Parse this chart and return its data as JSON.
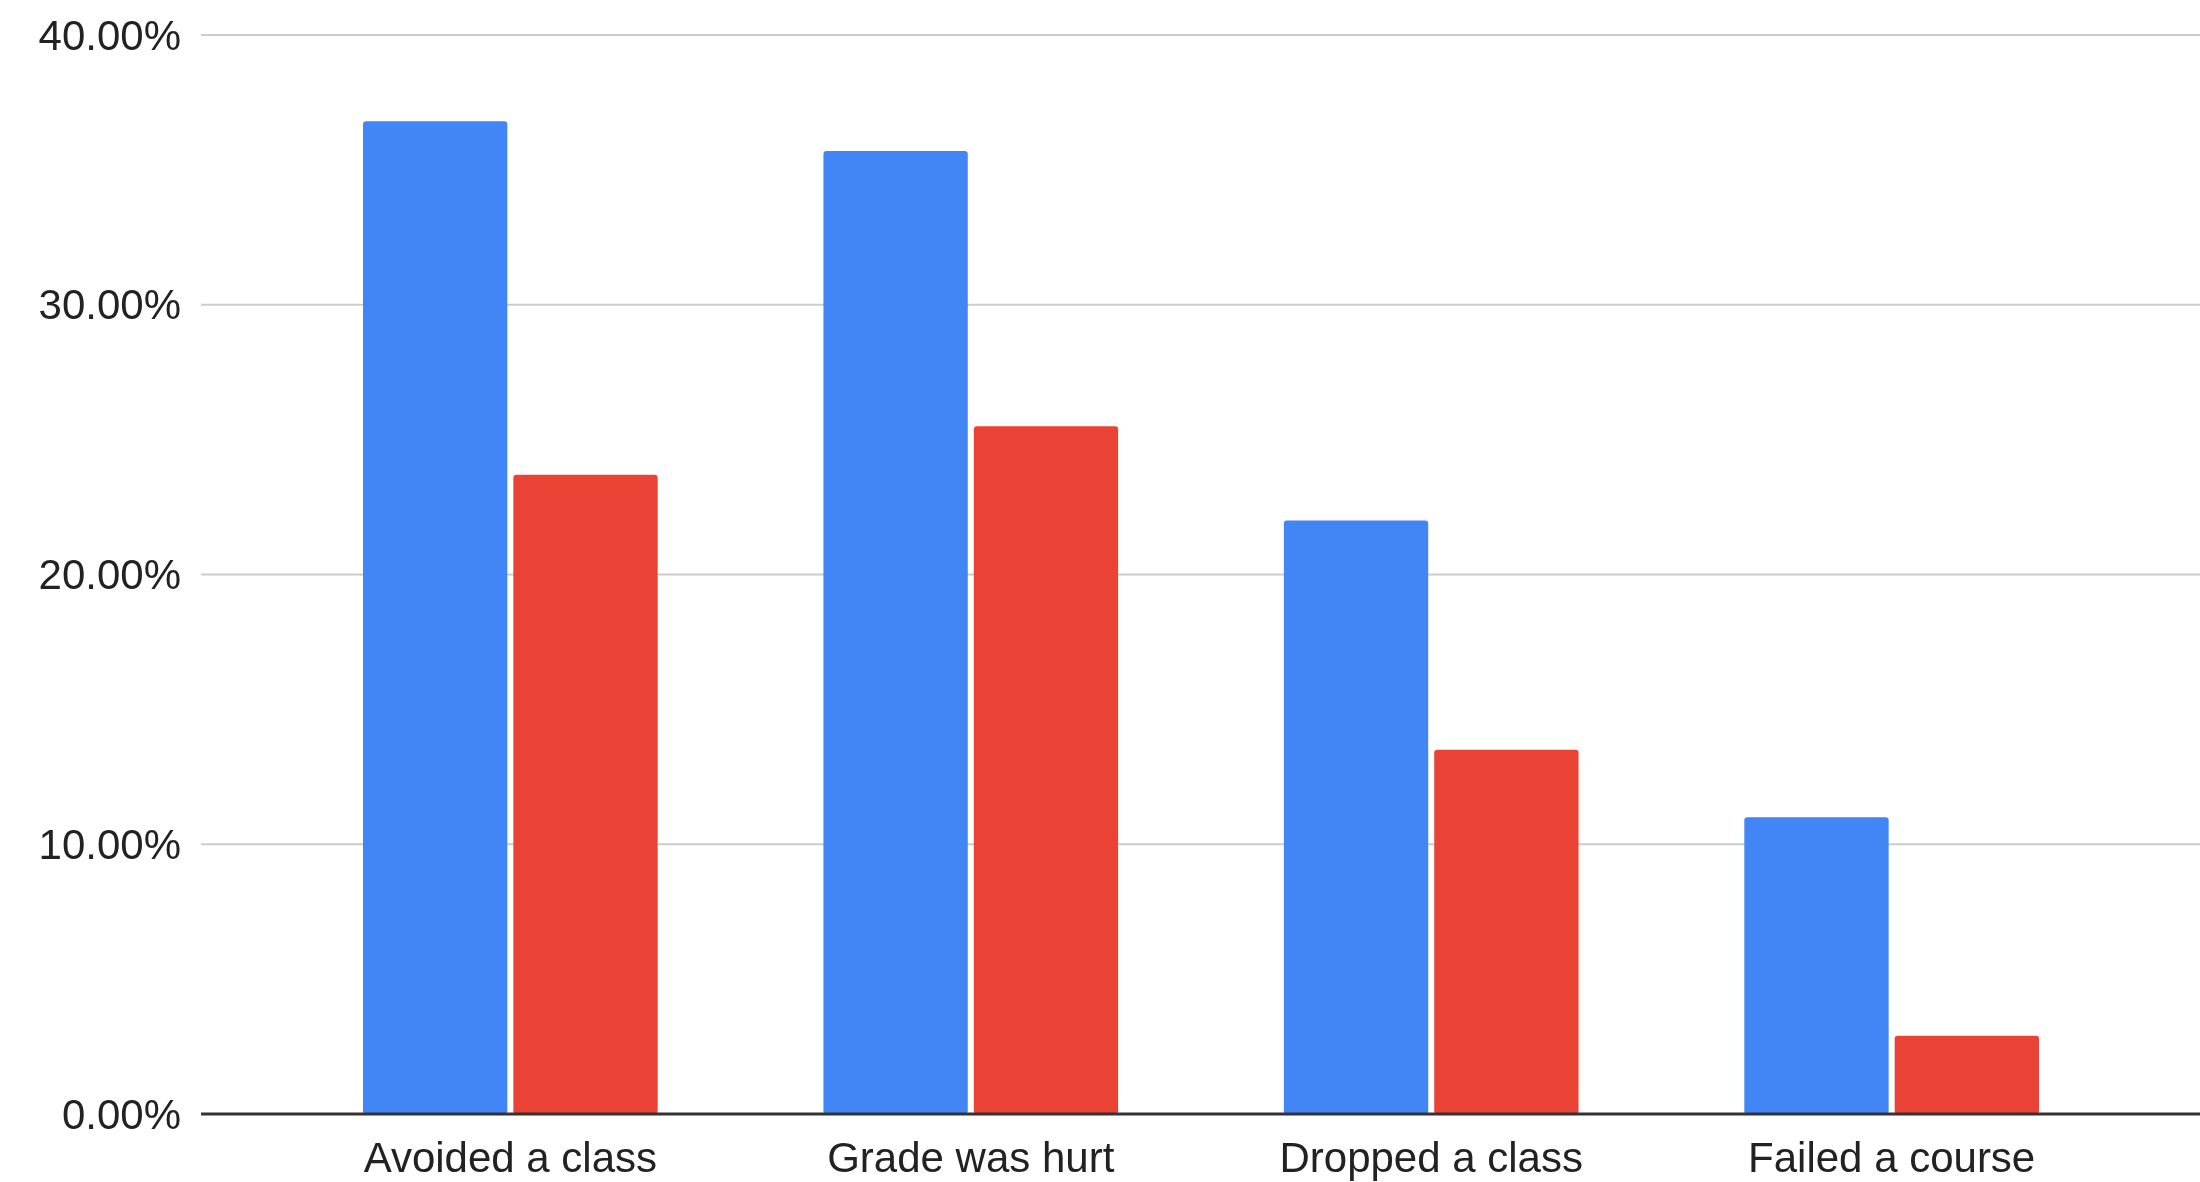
{
  "chart_data": {
    "type": "bar",
    "categories": [
      "Avoided a class",
      "Grade was hurt",
      "Dropped a class",
      "Failed a course"
    ],
    "series": [
      {
        "color": "#4285f4",
        "values": [
          36.8,
          35.7,
          22.0,
          11.0
        ]
      },
      {
        "color": "#ea4335",
        "values": [
          23.7,
          25.5,
          13.5,
          2.9
        ]
      }
    ],
    "ylim": [
      0,
      40
    ],
    "yticks": [
      {
        "value": 0,
        "label": "0.00%"
      },
      {
        "value": 10,
        "label": "10.00%"
      },
      {
        "value": 20,
        "label": "20.00%"
      },
      {
        "value": 30,
        "label": "30.00%"
      },
      {
        "value": 40,
        "label": "40.00%"
      }
    ],
    "grid": true
  }
}
